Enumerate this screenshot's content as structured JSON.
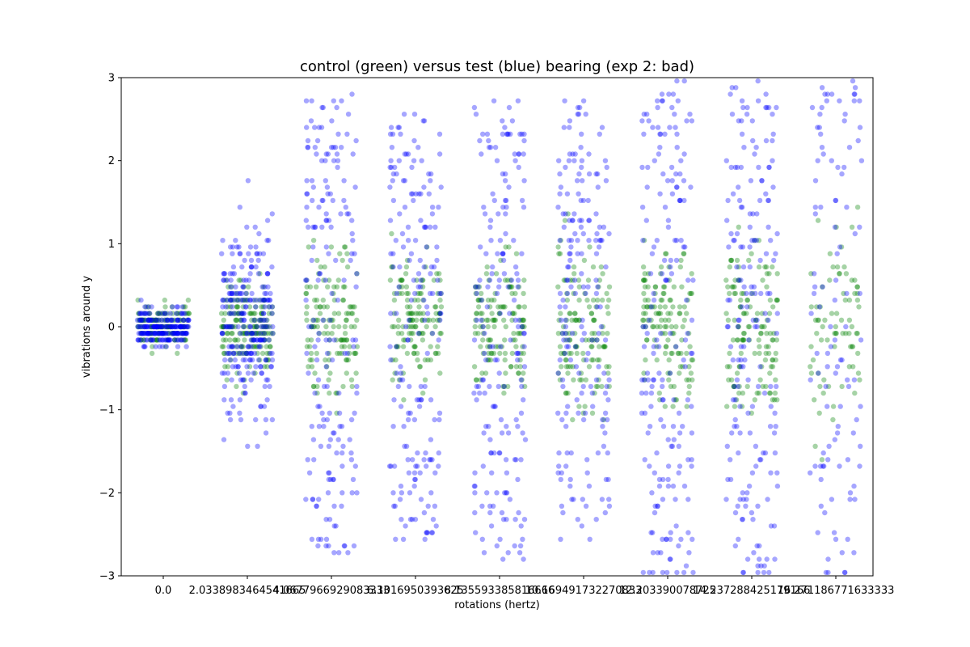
{
  "chart_data": {
    "type": "scatter",
    "title": "control (green) versus test (blue) bearing (exp 2: bad)",
    "xlabel": "rotations (hertz)",
    "ylabel": "vibrations around y",
    "ylim": [
      -3,
      3
    ],
    "yticks": [
      "−3",
      "−2",
      "−1",
      "0",
      "1",
      "2",
      "3"
    ],
    "yticks_values": [
      -3,
      -2,
      -1,
      0,
      1,
      2,
      3
    ],
    "categories": [
      "0.0",
      "2.0338983464541665",
      "4.0677966929083333",
      "6.1016950393625",
      "8.135593385816666",
      "10.169491732270833",
      "12.203390078725",
      "14.237288425179166",
      "16.271186771633333"
    ],
    "grid": false,
    "legend": "none",
    "jitter": "strip plot (category-wise jittered points)",
    "series": [
      {
        "color": "#008000",
        "alpha": 0.35,
        "spreads": [
          0.3,
          0.6,
          1.0,
          0.9,
          0.9,
          1.0,
          1.1,
          1.2,
          1.3
        ]
      },
      {
        "color": "#0000ff",
        "alpha": 0.35,
        "spreads": [
          0.25,
          1.3,
          2.8,
          2.6,
          2.8,
          2.8,
          3.0,
          3.0,
          3.0
        ]
      }
    ]
  }
}
